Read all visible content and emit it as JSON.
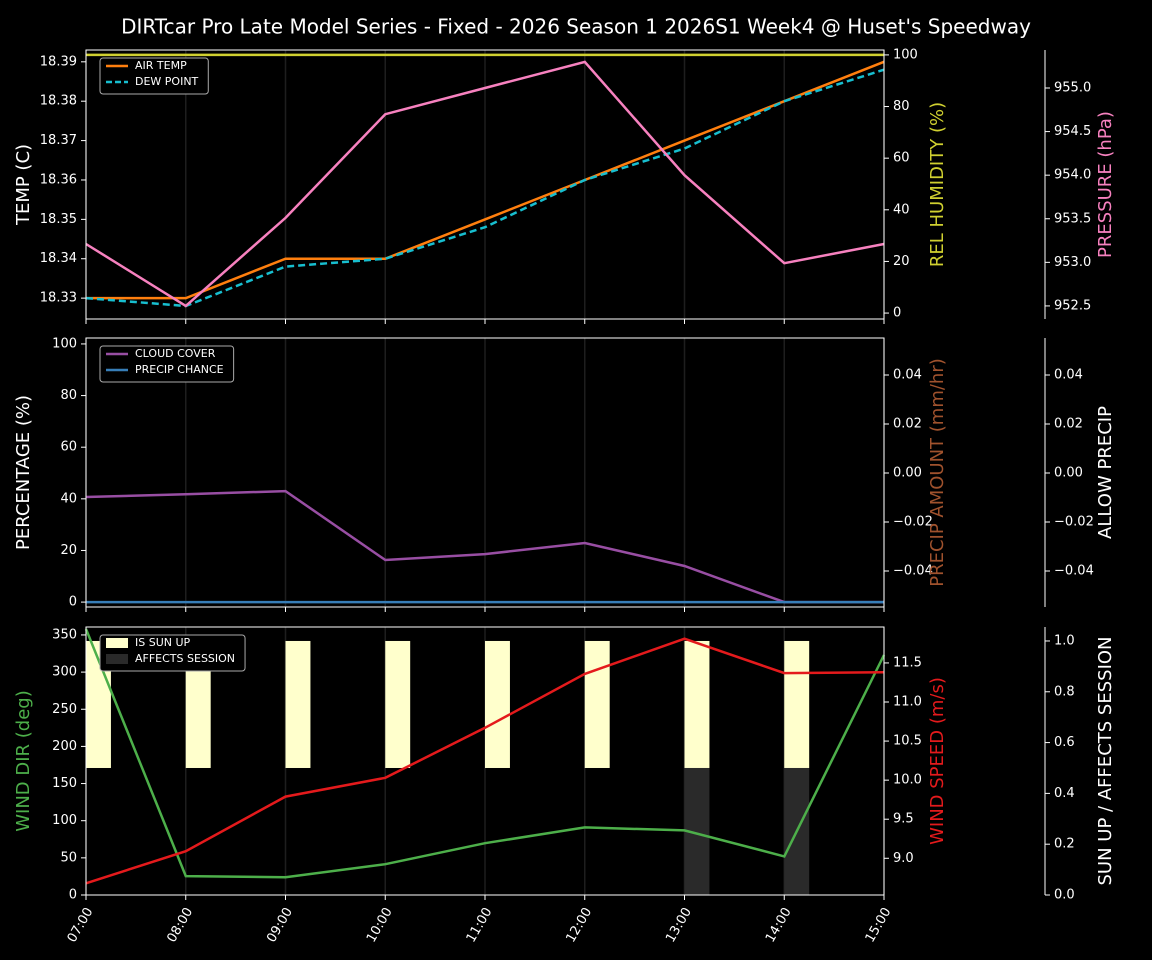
{
  "chart_data": [
    {
      "type": "line",
      "title": "DIRTcar Pro Late Model Series - Fixed - 2026 Season 1 2026S1 Week4 @ Huset's Speedway",
      "grid": true,
      "legend": "upper left",
      "y_label": "TEMP (C)",
      "y_label_color": "#ffffff",
      "ylim": [
        18.3247,
        18.393
      ],
      "yticks": [
        18.33,
        18.34,
        18.35,
        18.36,
        18.37,
        18.38,
        18.39
      ],
      "y2_label": "REL HUMIDITY (%)",
      "y2_label_color": "#d0d030",
      "y2lim": [
        -2.3,
        101.9
      ],
      "y2ticks": [
        0,
        20,
        40,
        60,
        80,
        100
      ],
      "y3_label": "PRESSURE (hPa)",
      "y3_label_color": "#f781bf",
      "y3lim": [
        952.35,
        955.436
      ],
      "y3ticks": [
        {
          "value": 952.5,
          "label": "952.5"
        },
        {
          "value": 953,
          "label": "953.0"
        },
        953.5,
        {
          "value": 954,
          "label": "954.0"
        },
        954.5,
        {
          "value": 955,
          "label": "955.0"
        }
      ],
      "series": [
        {
          "name": "AIR TEMP",
          "color": "#ff7f0e",
          "axis": "y",
          "values": [
            18.33,
            18.33,
            18.34,
            18.34,
            18.35,
            18.36,
            18.37,
            18.38,
            18.39
          ]
        },
        {
          "name": "DEW POINT",
          "color": "#17becf",
          "axis": "y",
          "dash": true,
          "values": [
            18.33,
            18.328,
            18.338,
            18.34,
            18.348,
            18.36,
            18.368,
            18.38,
            18.388
          ]
        },
        {
          "color": "#d0d030",
          "axis": "y2",
          "values": [
            100,
            100,
            100,
            100,
            100,
            100,
            100,
            100,
            100
          ]
        },
        {
          "color": "#f781bf",
          "axis": "y3",
          "values": [
            953.21,
            952.5,
            953.51,
            954.7,
            955.0,
            955.3,
            954.0,
            952.99,
            953.21
          ]
        }
      ]
    },
    {
      "type": "line",
      "grid": true,
      "legend": "upper left",
      "y_label": "PERCENTAGE (%)",
      "y_label_color": "#ffffff",
      "ylim": [
        -1.9,
        102.3
      ],
      "yticks": [
        0,
        20,
        40,
        60,
        80,
        100
      ],
      "y2_label": "PRECIP AMOUNT (mm/hr)",
      "y2_label_color": "#a0522d",
      "y2lim": [
        -0.0547,
        0.0551
      ],
      "y2ticks": [
        {
          "value": -0.04,
          "label": "−0.04"
        },
        {
          "value": -0.02,
          "label": "−0.02"
        },
        {
          "value": 0,
          "label": "0.00"
        },
        0.02,
        0.04
      ],
      "y3_label": "ALLOW PRECIP",
      "y3_label_color": "#ffffff",
      "y3lim": [
        -0.0547,
        0.0551
      ],
      "y3ticks": [
        {
          "value": -0.04,
          "label": "−0.04"
        },
        {
          "value": -0.02,
          "label": "−0.02"
        },
        {
          "value": 0,
          "label": "0.00"
        },
        0.02,
        0.04
      ],
      "series": [
        {
          "name": "CLOUD COVER",
          "color": "#984ea3",
          "axis": "y",
          "values": [
            40.7,
            41.8,
            43,
            16.3,
            18.6,
            22.9,
            14,
            0,
            0
          ]
        },
        {
          "name": "PRECIP CHANCE",
          "color": "#377eb8",
          "axis": "y",
          "values": [
            0,
            0,
            0,
            0,
            0,
            0,
            0,
            0,
            0
          ]
        }
      ]
    },
    {
      "type": "line",
      "grid": true,
      "legend": "upper left",
      "x": [
        "07:00",
        "08:00",
        "09:00",
        "10:00",
        "11:00",
        "12:00",
        "13:00",
        "14:00",
        "15:00"
      ],
      "y_label": "WIND DIR (deg)",
      "y_label_color": "#4daf4a",
      "ylim": [
        0,
        360.7
      ],
      "yticks": [
        0,
        50,
        100,
        150,
        200,
        250,
        300,
        350
      ],
      "y2_label": "WIND SPEED (m/s)",
      "y2_label_color": "#e41a1c",
      "y2lim": [
        8.53,
        11.96
      ],
      "y2ticks": [
        {
          "value": 9,
          "label": "9.0"
        },
        9.5,
        {
          "value": 10,
          "label": "10.0"
        },
        10.5,
        {
          "value": 11,
          "label": "11.0"
        },
        11.5
      ],
      "y3_label": "SUN UP / AFFECTS SESSION",
      "y3_label_color": "#ffffff",
      "y3lim": [
        0,
        1.055
      ],
      "y3ticks": [
        {
          "value": 0,
          "label": "0.0"
        },
        0.2,
        0.4,
        0.6,
        0.8,
        {
          "value": 1,
          "label": "1.0"
        }
      ],
      "series": [
        {
          "name": "IS SUN UP",
          "color": "#ffffcc",
          "axis": "y3",
          "kind": "bar",
          "band": "upper",
          "values": [
            1,
            1,
            1,
            1,
            1,
            1,
            1,
            1,
            0
          ]
        },
        {
          "name": "AFFECTS SESSION",
          "color": "#2a2a2a",
          "axis": "y3",
          "kind": "bar",
          "band": "lower",
          "values": [
            0,
            0,
            0,
            0,
            0,
            0,
            1,
            1,
            0
          ]
        },
        {
          "color": "#4daf4a",
          "axis": "y",
          "values": [
            358,
            25.5,
            24,
            41.5,
            69.7,
            91,
            87,
            52,
            323
          ]
        },
        {
          "color": "#e41a1c",
          "axis": "y2",
          "values": [
            8.68,
            9.09,
            9.79,
            10.03,
            10.67,
            11.36,
            11.81,
            11.37,
            11.38
          ]
        }
      ]
    }
  ]
}
